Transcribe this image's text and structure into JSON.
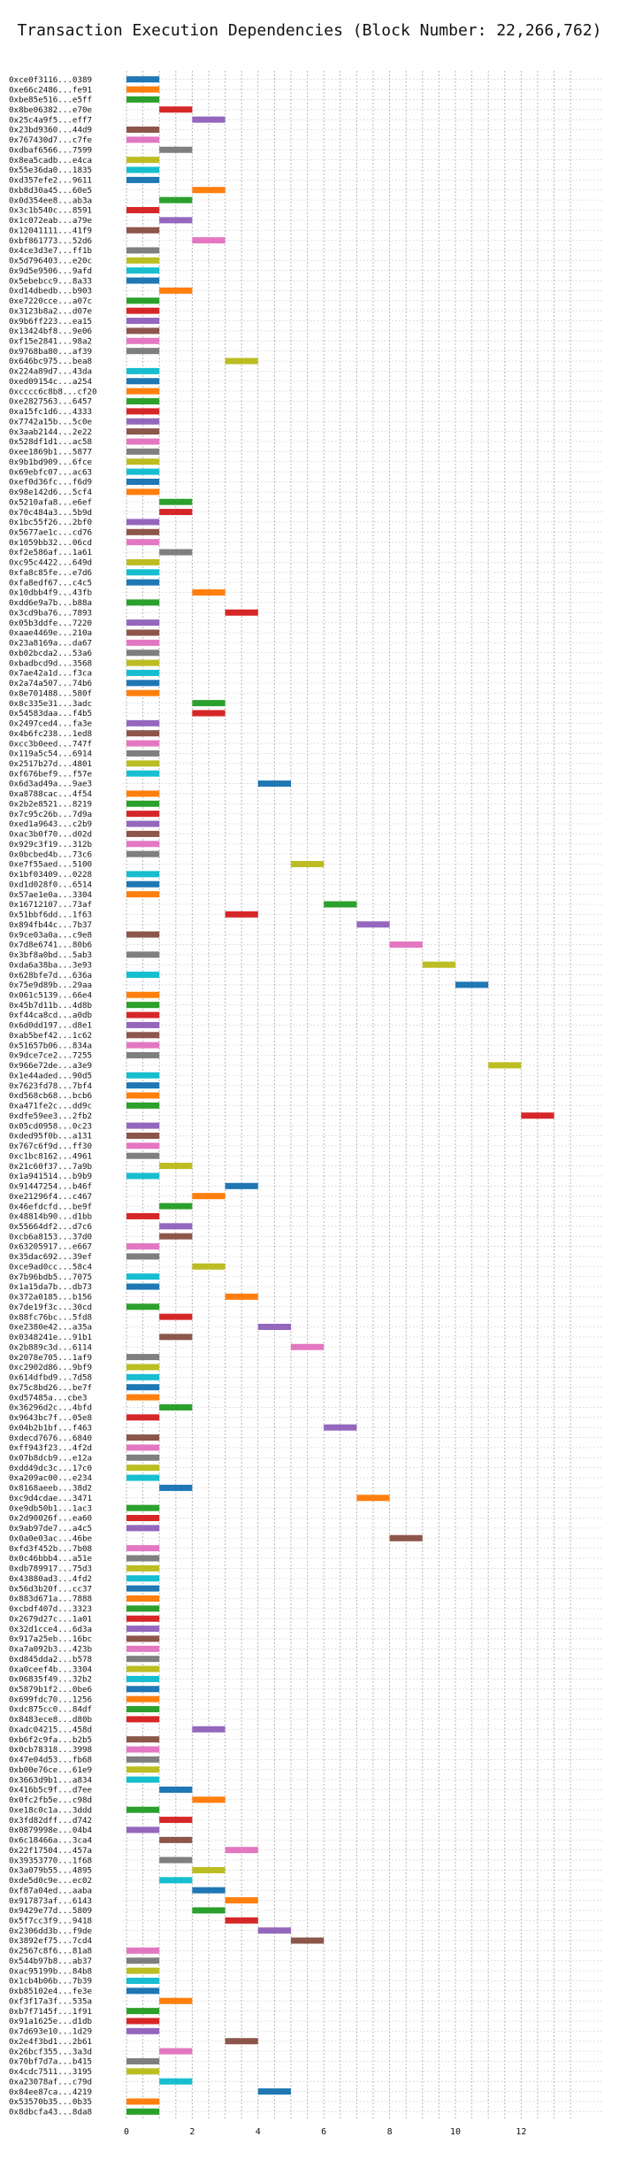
{
  "chart_data": {
    "type": "bar",
    "orientation": "horizontal-gantt",
    "title": "Transaction Execution Dependencies (Block Number: 22,266,762)",
    "xlabel": "",
    "ylabel": "",
    "xlim": [
      0,
      13.5
    ],
    "xticks": [
      0,
      2,
      4,
      6,
      8,
      10,
      12
    ],
    "grid": true,
    "legend": "none",
    "bar_width": 1,
    "palette": [
      "#1f77b4",
      "#ff7f0e",
      "#2ca02c",
      "#d62728",
      "#9467bd",
      "#8c564b",
      "#e377c2",
      "#7f7f7f",
      "#bcbd22",
      "#17becf"
    ],
    "rows": [
      {
        "label": "0xce0f3116...0389",
        "x": 0
      },
      {
        "label": "0xe66c2486...fe91",
        "x": 0
      },
      {
        "label": "0xbe85e516...e5ff",
        "x": 0
      },
      {
        "label": "0x8be06382...e70e",
        "x": 1
      },
      {
        "label": "0x25c4a9f5...eff7",
        "x": 2
      },
      {
        "label": "0x23bd9360...44d9",
        "x": 0
      },
      {
        "label": "0x767430d7...c7fe",
        "x": 0
      },
      {
        "label": "0xdbaf6566...7599",
        "x": 1
      },
      {
        "label": "0x8ea5cadb...e4ca",
        "x": 0
      },
      {
        "label": "0x55e36da0...1835",
        "x": 0
      },
      {
        "label": "0xd357efe2...9611",
        "x": 0
      },
      {
        "label": "0xb8d30a45...60e5",
        "x": 2
      },
      {
        "label": "0x0d354ee8...ab3a",
        "x": 1
      },
      {
        "label": "0x3c1b540c...8591",
        "x": 0
      },
      {
        "label": "0x1c072eab...a79e",
        "x": 1
      },
      {
        "label": "0x12041111...41f9",
        "x": 0
      },
      {
        "label": "0xbf861773...52d6",
        "x": 2
      },
      {
        "label": "0x4ce3d3e7...ff1b",
        "x": 0
      },
      {
        "label": "0x5d796403...e20c",
        "x": 0
      },
      {
        "label": "0x9d5e9506...9afd",
        "x": 0
      },
      {
        "label": "0x5ebebcc9...8a33",
        "x": 0
      },
      {
        "label": "0xd14dbedb...b903",
        "x": 1
      },
      {
        "label": "0xe7220cce...a07c",
        "x": 0
      },
      {
        "label": "0x3123b8a2...d07e",
        "x": 0
      },
      {
        "label": "0x9b6ff223...ea15",
        "x": 0
      },
      {
        "label": "0x13424bf8...9e06",
        "x": 0
      },
      {
        "label": "0xf15e2841...98a2",
        "x": 0
      },
      {
        "label": "0x9768ba80...af39",
        "x": 0
      },
      {
        "label": "0x646bc975...bea8",
        "x": 3
      },
      {
        "label": "0x224a89d7...43da",
        "x": 0
      },
      {
        "label": "0xed09154c...a254",
        "x": 0
      },
      {
        "label": "0xcccc6c8b8...cf20",
        "x": 0
      },
      {
        "label": "0xe2827563...6457",
        "x": 0
      },
      {
        "label": "0xa15fc1d6...4333",
        "x": 0
      },
      {
        "label": "0x7742a15b...5c0e",
        "x": 0
      },
      {
        "label": "0x3aab2144...2e22",
        "x": 0
      },
      {
        "label": "0x528df1d1...ac58",
        "x": 0
      },
      {
        "label": "0xee1869b1...5877",
        "x": 0
      },
      {
        "label": "0x9b1bd909...6fce",
        "x": 0
      },
      {
        "label": "0x69ebfc07...ac63",
        "x": 0
      },
      {
        "label": "0xef0d36fc...f6d9",
        "x": 0
      },
      {
        "label": "0x98e142d6...5cf4",
        "x": 0
      },
      {
        "label": "0x5210afa8...e6ef",
        "x": 1
      },
      {
        "label": "0x70c484a3...5b9d",
        "x": 1
      },
      {
        "label": "0x1bc55f26...2bf0",
        "x": 0
      },
      {
        "label": "0x5677ae1c...cd76",
        "x": 0
      },
      {
        "label": "0x1059bb32...06cd",
        "x": 0
      },
      {
        "label": "0xf2e586af...1a61",
        "x": 1
      },
      {
        "label": "0xc95c4422...649d",
        "x": 0
      },
      {
        "label": "0xfa8c85fe...e7d6",
        "x": 0
      },
      {
        "label": "0xfa8edf67...c4c5",
        "x": 0
      },
      {
        "label": "0x10dbb4f9...43fb",
        "x": 2
      },
      {
        "label": "0xdd6e9a7b...b88a",
        "x": 0
      },
      {
        "label": "0x3cd9ba76...7893",
        "x": 3
      },
      {
        "label": "0x05b3ddfe...7220",
        "x": 0
      },
      {
        "label": "0xaae4469e...210a",
        "x": 0
      },
      {
        "label": "0x23a8169a...da67",
        "x": 0
      },
      {
        "label": "0xb02bcda2...53a6",
        "x": 0
      },
      {
        "label": "0xbadbcd9d...3568",
        "x": 0
      },
      {
        "label": "0x7ae42a1d...f3ca",
        "x": 0
      },
      {
        "label": "0x2a74a507...74b6",
        "x": 0
      },
      {
        "label": "0x8e701488...580f",
        "x": 0
      },
      {
        "label": "0x8c335e31...3adc",
        "x": 2
      },
      {
        "label": "0x54583daa...f4b5",
        "x": 2
      },
      {
        "label": "0x2497ced4...fa3e",
        "x": 0
      },
      {
        "label": "0x4b6fc238...1ed8",
        "x": 0
      },
      {
        "label": "0xcc3b0eed...747f",
        "x": 0
      },
      {
        "label": "0x119a5c54...6914",
        "x": 0
      },
      {
        "label": "0x2517b27d...4801",
        "x": 0
      },
      {
        "label": "0xf676bef9...f57e",
        "x": 0
      },
      {
        "label": "0x6d3ad49a...9ae3",
        "x": 4
      },
      {
        "label": "0xa8788cac...4f54",
        "x": 0
      },
      {
        "label": "0x2b2e8521...8219",
        "x": 0
      },
      {
        "label": "0x7c95c26b...7d9a",
        "x": 0
      },
      {
        "label": "0xed1a9643...c2b9",
        "x": 0
      },
      {
        "label": "0xac3b0f70...d02d",
        "x": 0
      },
      {
        "label": "0x929c3f19...312b",
        "x": 0
      },
      {
        "label": "0x0bcbed4b...73c6",
        "x": 0
      },
      {
        "label": "0xe7f55aed...5100",
        "x": 5
      },
      {
        "label": "0x1bf03409...0228",
        "x": 0
      },
      {
        "label": "0xd1d028f0...6514",
        "x": 0
      },
      {
        "label": "0x57ae1e0a...3304",
        "x": 0
      },
      {
        "label": "0x16712107...73af",
        "x": 6
      },
      {
        "label": "0x51bbf6dd...1f63",
        "x": 3
      },
      {
        "label": "0x894fb44c...7b37",
        "x": 7
      },
      {
        "label": "0x9ce03a0a...c9e8",
        "x": 0
      },
      {
        "label": "0x7d8e6741...80b6",
        "x": 8
      },
      {
        "label": "0x3bf8a0bd...5ab3",
        "x": 0
      },
      {
        "label": "0xda6a38ba...3e93",
        "x": 9
      },
      {
        "label": "0x628bfe7d...636a",
        "x": 0
      },
      {
        "label": "0x75e9d89b...29aa",
        "x": 10
      },
      {
        "label": "0x061c5139...66e4",
        "x": 0
      },
      {
        "label": "0x45b7d11b...4d8b",
        "x": 0
      },
      {
        "label": "0xf44ca8cd...a0db",
        "x": 0
      },
      {
        "label": "0x6d0dd197...d8e1",
        "x": 0
      },
      {
        "label": "0xab5bef42...1c62",
        "x": 0
      },
      {
        "label": "0x51657b06...834a",
        "x": 0
      },
      {
        "label": "0x9dce7ce2...7255",
        "x": 0
      },
      {
        "label": "0x966e72de...a3e9",
        "x": 11
      },
      {
        "label": "0x1e44aded...90d5",
        "x": 0
      },
      {
        "label": "0x7623fd78...7bf4",
        "x": 0
      },
      {
        "label": "0xd568cb68...bcb6",
        "x": 0
      },
      {
        "label": "0xa471fe2c...dd9c",
        "x": 0
      },
      {
        "label": "0xdfe59ee3...2fb2",
        "x": 12
      },
      {
        "label": "0x05cd0958...0c23",
        "x": 0
      },
      {
        "label": "0xded95f0b...a131",
        "x": 0
      },
      {
        "label": "0x767c6f9d...ff30",
        "x": 0
      },
      {
        "label": "0xc1bc8162...4961",
        "x": 0
      },
      {
        "label": "0x21c60f37...7a9b",
        "x": 1
      },
      {
        "label": "0x1a941514...b9b9",
        "x": 0
      },
      {
        "label": "0x91447254...b46f",
        "x": 3
      },
      {
        "label": "0xe21296f4...c467",
        "x": 2
      },
      {
        "label": "0x46efdcfd...be9f",
        "x": 1
      },
      {
        "label": "0x48814b90...d1bb",
        "x": 0
      },
      {
        "label": "0x55664df2...d7c6",
        "x": 1
      },
      {
        "label": "0xcb6a8153...37d0",
        "x": 1
      },
      {
        "label": "0x63205917...e667",
        "x": 0
      },
      {
        "label": "0x35dac692...39ef",
        "x": 0
      },
      {
        "label": "0xce9ad0cc...58c4",
        "x": 2
      },
      {
        "label": "0x7b96bdb5...7075",
        "x": 0
      },
      {
        "label": "0x1a15da7b...db73",
        "x": 0
      },
      {
        "label": "0x372a0185...b156",
        "x": 3
      },
      {
        "label": "0x7de19f3c...30cd",
        "x": 0
      },
      {
        "label": "0x88fc76bc...5fd8",
        "x": 1
      },
      {
        "label": "0xe2380e42...a35a",
        "x": 4
      },
      {
        "label": "0x0348241e...91b1",
        "x": 1
      },
      {
        "label": "0x2b889c3d...6114",
        "x": 5
      },
      {
        "label": "0x2078e705...1af9",
        "x": 0
      },
      {
        "label": "0xc2902d86...9bf9",
        "x": 0
      },
      {
        "label": "0x614dfbd9...7d58",
        "x": 0
      },
      {
        "label": "0x75c8bd26...be7f",
        "x": 0
      },
      {
        "label": "0xd57485a...cbe3",
        "x": 0
      },
      {
        "label": "0x36296d2c...4bfd",
        "x": 1
      },
      {
        "label": "0x9643bc7f...05e8",
        "x": 0
      },
      {
        "label": "0x04b2b1bf...f463",
        "x": 6
      },
      {
        "label": "0xdecd7676...6840",
        "x": 0
      },
      {
        "label": "0xff943f23...4f2d",
        "x": 0
      },
      {
        "label": "0x07b8dcb9...e12a",
        "x": 0
      },
      {
        "label": "0xdd49dc3c...17c0",
        "x": 0
      },
      {
        "label": "0xa209ac00...e234",
        "x": 0
      },
      {
        "label": "0x8168aeeb...38d2",
        "x": 1
      },
      {
        "label": "0xc9d4cdae...3471",
        "x": 7
      },
      {
        "label": "0xe9db50b1...1ac3",
        "x": 0
      },
      {
        "label": "0x2d90026f...ea60",
        "x": 0
      },
      {
        "label": "0x9ab97de7...a4c5",
        "x": 0
      },
      {
        "label": "0x0a0e03ac...46be",
        "x": 8
      },
      {
        "label": "0xfd3f452b...7b08",
        "x": 0
      },
      {
        "label": "0x0c46bbb4...a51e",
        "x": 0
      },
      {
        "label": "0xdb789917...75d3",
        "x": 0
      },
      {
        "label": "0x43880ad3...4fd2",
        "x": 0
      },
      {
        "label": "0x56d3b20f...cc37",
        "x": 0
      },
      {
        "label": "0x883d671a...7888",
        "x": 0
      },
      {
        "label": "0xcbdf407d...3323",
        "x": 0
      },
      {
        "label": "0x2679d27c...1a01",
        "x": 0
      },
      {
        "label": "0x32d1cce4...6d3a",
        "x": 0
      },
      {
        "label": "0x917a25eb...16bc",
        "x": 0
      },
      {
        "label": "0xa7a092b3...423b",
        "x": 0
      },
      {
        "label": "0xd845dda2...b578",
        "x": 0
      },
      {
        "label": "0xa0ceef4b...3304",
        "x": 0
      },
      {
        "label": "0x06835f49...32b2",
        "x": 0
      },
      {
        "label": "0x5879b1f2...0be6",
        "x": 0
      },
      {
        "label": "0x699fdc70...1256",
        "x": 0
      },
      {
        "label": "0xdc875cc0...84df",
        "x": 0
      },
      {
        "label": "0x8483ece8...d80b",
        "x": 0
      },
      {
        "label": "0xadc04215...458d",
        "x": 2
      },
      {
        "label": "0xb6f2c9fa...b2b5",
        "x": 0
      },
      {
        "label": "0x0cb78318...3998",
        "x": 0
      },
      {
        "label": "0x47e04d53...fb68",
        "x": 0
      },
      {
        "label": "0xb00e76ce...61e9",
        "x": 0
      },
      {
        "label": "0x3663d9b1...a834",
        "x": 0
      },
      {
        "label": "0x416b5c9f...d7ee",
        "x": 1
      },
      {
        "label": "0x0fc2fb5e...c98d",
        "x": 2
      },
      {
        "label": "0xe18c0c1a...3ddd",
        "x": 0
      },
      {
        "label": "0x3fd82dff...d742",
        "x": 1
      },
      {
        "label": "0x0879998e...04b4",
        "x": 0
      },
      {
        "label": "0x6c18466a...3ca4",
        "x": 1
      },
      {
        "label": "0x22f17504...457a",
        "x": 3
      },
      {
        "label": "0x39353770...1f68",
        "x": 1
      },
      {
        "label": "0x3a079b55...4895",
        "x": 2
      },
      {
        "label": "0xde5d0c9e...ec02",
        "x": 1
      },
      {
        "label": "0xf87a04ed...aaba",
        "x": 2
      },
      {
        "label": "0x917873af...6143",
        "x": 3
      },
      {
        "label": "0x9429e77d...5809",
        "x": 2
      },
      {
        "label": "0x5f7cc3f9...9418",
        "x": 3
      },
      {
        "label": "0x2306dd3b...f9de",
        "x": 4
      },
      {
        "label": "0x3892ef75...7cd4",
        "x": 5
      },
      {
        "label": "0x2567c8f6...81a8",
        "x": 0
      },
      {
        "label": "0x544b97b8...ab37",
        "x": 0
      },
      {
        "label": "0xac95199b...84b8",
        "x": 0
      },
      {
        "label": "0x1cb4b06b...7b39",
        "x": 0
      },
      {
        "label": "0xb85102e4...fe3e",
        "x": 0
      },
      {
        "label": "0xf3f17a3f...535a",
        "x": 1
      },
      {
        "label": "0xb7f7145f...1f91",
        "x": 0
      },
      {
        "label": "0x91a1625e...d1db",
        "x": 0
      },
      {
        "label": "0x7d693e10...1d29",
        "x": 0
      },
      {
        "label": "0x2e4f3bd1...2b61",
        "x": 3
      },
      {
        "label": "0x26bcf355...3a3d",
        "x": 1
      },
      {
        "label": "0x70bf7d7a...b415",
        "x": 0
      },
      {
        "label": "0x4cdc7511...3195",
        "x": 0
      },
      {
        "label": "0xa23078af...c79d",
        "x": 1
      },
      {
        "label": "0x84ee87ca...4219",
        "x": 4
      },
      {
        "label": "0x53570b35...0b35",
        "x": 0
      },
      {
        "label": "0x8dbcfa43...8da8",
        "x": 0
      }
    ]
  }
}
